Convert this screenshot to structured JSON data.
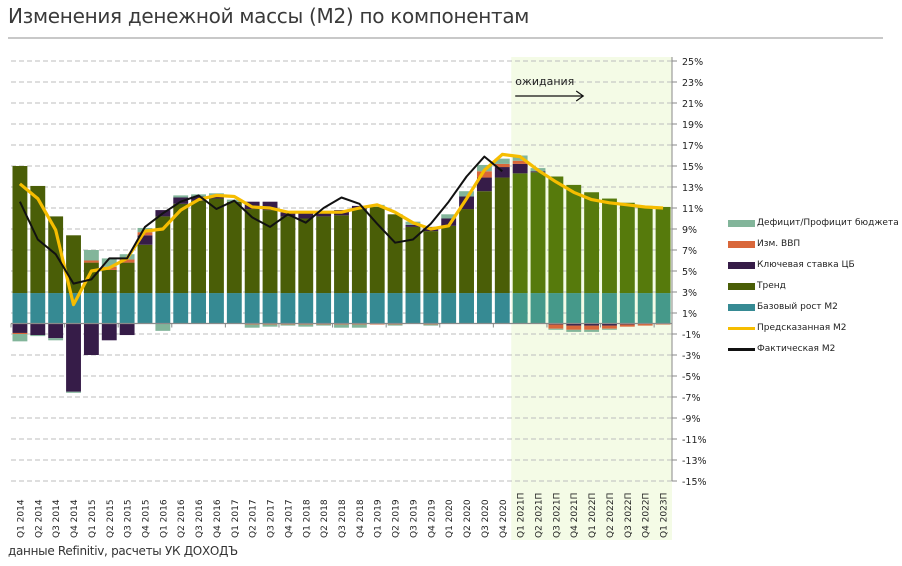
{
  "header": {
    "title": "Изменения денежной массы (М2) по компонентам"
  },
  "footer": {
    "source": "данные Refinitiv, расчеты УК ДОХОДЪ"
  },
  "colors": {
    "deficit": "#82b59a",
    "gdp": "#d9673a",
    "key_rate": "#361c48",
    "trend": "#4a5e07",
    "trend_forecast": "#567a0c",
    "base": "#368a93",
    "base_forecast": "#45998a",
    "predicted": "#f6bd00",
    "actual": "#111111",
    "forecast_bg": "#f4fbe6",
    "grid": "#bdbdbd",
    "axis": "#8a8a8a"
  },
  "chart_data": {
    "type": "bar",
    "stacked": true,
    "title": "Изменения денежной массы (М2) по компонентам",
    "annotation": "ожидания",
    "forecast_start_index": 28,
    "ylim": [
      -15,
      25
    ],
    "yticks": [
      "25%",
      "23%",
      "21%",
      "19%",
      "17%",
      "15%",
      "13%",
      "11%",
      "9%",
      "7%",
      "5%",
      "3%",
      "1%",
      "-1%",
      "-3%",
      "-5%",
      "-7%",
      "-9%",
      "-11%",
      "-13%",
      "-15%"
    ],
    "ytick_values": [
      25,
      23,
      21,
      19,
      17,
      15,
      13,
      11,
      9,
      7,
      5,
      3,
      1,
      -1,
      -3,
      -5,
      -7,
      -9,
      -11,
      -13,
      -15
    ],
    "grid": true,
    "legend_position": "right",
    "categories": [
      "Q1 2014",
      "Q2 2014",
      "Q3 2014",
      "Q4 2014",
      "Q1 2015",
      "Q2 2015",
      "Q3 2015",
      "Q4 2015",
      "Q1 2016",
      "Q2 2016",
      "Q3 2016",
      "Q4 2016",
      "Q1 2017",
      "Q2 2017",
      "Q3 2017",
      "Q4 2017",
      "Q1 2018",
      "Q2 2018",
      "Q3 2018",
      "Q4 2018",
      "Q1 2019",
      "Q2 2019",
      "Q3 2019",
      "Q4 2019",
      "Q1 2020",
      "Q2 2020",
      "Q3 2020",
      "Q4 2020",
      "Q1 2021П",
      "Q2 2021П",
      "Q3 2021П",
      "Q4 2021П",
      "Q1 2022П",
      "Q2 2022П",
      "Q3 2022П",
      "Q4 2022П",
      "Q1 2023П"
    ],
    "series": [
      {
        "name": "Базовый рост М2",
        "key": "base",
        "kind": "bar",
        "values": [
          2.9,
          2.9,
          2.9,
          2.9,
          2.9,
          2.9,
          2.9,
          2.9,
          2.9,
          2.9,
          2.9,
          2.9,
          2.9,
          2.9,
          2.9,
          2.9,
          2.9,
          2.9,
          2.9,
          2.9,
          2.9,
          2.9,
          2.9,
          2.9,
          2.9,
          2.9,
          2.9,
          2.9,
          2.9,
          2.9,
          2.9,
          2.9,
          2.9,
          2.9,
          2.9,
          2.9,
          2.9
        ]
      },
      {
        "name": "Тренд",
        "key": "trend",
        "kind": "bar",
        "values": [
          12.1,
          10.2,
          7.3,
          5.5,
          2.9,
          2.2,
          2.9,
          4.6,
          7.3,
          8.5,
          8.8,
          9.0,
          8.7,
          8.0,
          7.9,
          7.3,
          7.1,
          7.3,
          7.4,
          8.0,
          8.2,
          7.5,
          6.3,
          5.9,
          6.4,
          8.0,
          9.7,
          11.0,
          11.4,
          11.5,
          11.1,
          10.3,
          9.6,
          9.0,
          8.6,
          8.3,
          8.2
        ]
      },
      {
        "name": "Ключевая ставка ЦБ",
        "key": "key_rate",
        "kind": "bar",
        "values": [
          -0.9,
          -1.1,
          -1.4,
          -6.5,
          -3.0,
          -1.6,
          -1.1,
          0.9,
          0.6,
          0.6,
          0.4,
          0.2,
          0.0,
          0.7,
          0.8,
          0.4,
          0.5,
          0.5,
          0.5,
          0.3,
          0.0,
          0.0,
          0.2,
          0.4,
          0.7,
          1.2,
          1.3,
          1.0,
          0.9,
          0.1,
          -0.1,
          -0.2,
          -0.2,
          -0.2,
          -0.1,
          0.0,
          0.0
        ]
      },
      {
        "name": "Изм. ВВП",
        "key": "gdp",
        "kind": "bar",
        "values": [
          -0.1,
          0.0,
          0.0,
          0.0,
          0.2,
          0.3,
          0.3,
          0.3,
          0.0,
          0.0,
          0.0,
          0.0,
          0.0,
          -0.1,
          -0.1,
          -0.1,
          -0.1,
          -0.1,
          -0.1,
          -0.1,
          -0.1,
          -0.1,
          0.0,
          -0.1,
          0.0,
          0.0,
          0.6,
          0.3,
          0.3,
          0.0,
          -0.4,
          -0.4,
          -0.4,
          -0.3,
          -0.2,
          -0.2,
          -0.1
        ]
      },
      {
        "name": "Дефицит/Профицит бюджета",
        "key": "deficit",
        "kind": "bar",
        "values": [
          -0.7,
          -0.1,
          -0.2,
          -0.1,
          1.0,
          0.8,
          0.5,
          0.4,
          -0.7,
          0.2,
          0.2,
          0.3,
          0.2,
          -0.3,
          -0.2,
          -0.1,
          -0.2,
          -0.1,
          -0.3,
          -0.3,
          0.2,
          -0.1,
          0.3,
          -0.1,
          0.4,
          0.5,
          0.6,
          0.5,
          0.5,
          0.3,
          -0.1,
          -0.2,
          -0.2,
          -0.1,
          0.0,
          0.0,
          0.0
        ]
      },
      {
        "name": "Предсказанная М2",
        "key": "predicted",
        "kind": "line",
        "values": [
          13.3,
          11.9,
          8.9,
          1.8,
          5.0,
          5.3,
          6.2,
          8.8,
          9.0,
          10.8,
          11.8,
          12.2,
          12.1,
          11.1,
          11.0,
          10.6,
          10.6,
          10.6,
          10.6,
          11.0,
          11.3,
          10.6,
          9.6,
          9.0,
          9.3,
          11.9,
          14.6,
          16.1,
          15.9,
          14.6,
          13.5,
          12.5,
          11.8,
          11.5,
          11.3,
          11.1,
          11.0
        ]
      },
      {
        "name": "Фактическая М2",
        "key": "actual",
        "kind": "line",
        "values": [
          11.6,
          8.0,
          6.6,
          3.8,
          4.2,
          6.2,
          6.2,
          9.2,
          10.5,
          11.6,
          12.2,
          10.9,
          11.7,
          10.1,
          9.2,
          10.4,
          9.6,
          11.0,
          12.0,
          11.4,
          9.5,
          7.7,
          8.0,
          9.5,
          11.6,
          14.0,
          15.9,
          14.5,
          null,
          null,
          null,
          null,
          null,
          null,
          null,
          null,
          null
        ]
      }
    ]
  },
  "legend": {
    "items": [
      {
        "label": "Дефицит/Профицит бюджета",
        "key": "deficit",
        "kind": "bar"
      },
      {
        "label": "Изм. ВВП",
        "key": "gdp",
        "kind": "bar"
      },
      {
        "label": "Ключевая ставка ЦБ",
        "key": "key_rate",
        "kind": "bar"
      },
      {
        "label": "Тренд",
        "key": "trend",
        "kind": "bar"
      },
      {
        "label": "Базовый рост М2",
        "key": "base",
        "kind": "bar"
      },
      {
        "label": "Предсказанная М2",
        "key": "predicted",
        "kind": "line"
      },
      {
        "label": "Фактическая М2",
        "key": "actual",
        "kind": "line"
      }
    ]
  }
}
